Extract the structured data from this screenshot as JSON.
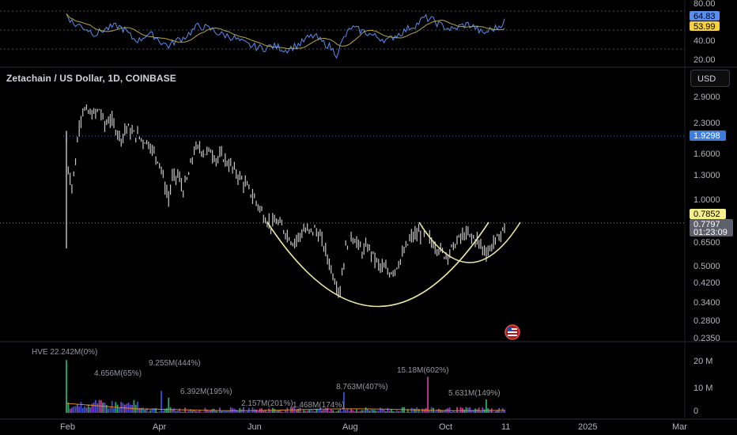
{
  "header": {
    "symbol_title": "Zetachain / US Dollar, 1D, COINBASE",
    "currency_button": "USD"
  },
  "colors": {
    "background": "#000000",
    "candle": "#c8c8c8",
    "rsi_line": "#5b8def",
    "rsi_ma": "#b5a642",
    "cup_curve": "#e8e6a4",
    "level_blue": "#3d7ddc",
    "level_yellow": "#f5f08b",
    "volume_palette": [
      "#3c4fd1",
      "#c43a9a",
      "#2aa86a",
      "#7a3fd0"
    ]
  },
  "rsi_pane": {
    "scale": [
      "80.00",
      "40.00",
      "20.00"
    ],
    "badge_values": [
      "64.83",
      "53.99"
    ]
  },
  "price_pane": {
    "scale": [
      "2.9000",
      "2.3000",
      "1.6000",
      "1.3000",
      "1.0000",
      "0.6500",
      "0.5000",
      "0.4200",
      "0.3400",
      "0.2800",
      "0.2350"
    ],
    "badges": {
      "blue_level": "1.9298",
      "yellow_level": "0.7852",
      "last_price": "0.7797",
      "countdown": "01:23:09"
    }
  },
  "volume_pane": {
    "legend": "HVE 22.242M(0%)",
    "scale": [
      "20 M",
      "10 M",
      "0"
    ],
    "annotations": [
      "4.656M(65%)",
      "9.255M(444%)",
      "6.392M(195%)",
      "2.157M(201%)",
      "1.468M(174%)",
      "8.763M(407%)",
      "15.18M(602%)",
      "5.631M(149%)"
    ]
  },
  "time_axis": [
    "Feb",
    "Apr",
    "Jun",
    "Aug",
    "Oct",
    "11",
    "2025",
    "Mar"
  ],
  "chart_data": {
    "type": "bar",
    "title": "Zetachain / US Dollar, 1D, COINBASE",
    "price_scale": "log",
    "price_range": [
      0.235,
      3.2
    ],
    "rsi_range": [
      10,
      90
    ],
    "volume_range": [
      0,
      24000000
    ],
    "levels": [
      1.9298,
      0.7852
    ],
    "last_price": 0.7797,
    "cup_bottom": 0.3,
    "rsi_last": 64.83,
    "rsi_ma_last": 53.99,
    "x_months": [
      "Feb",
      "Apr",
      "Jun",
      "Aug",
      "Oct",
      "11",
      "2025",
      "Mar"
    ],
    "price_keypoints": [
      [
        0,
        1.9
      ],
      [
        1,
        1.45
      ],
      [
        3,
        1.2
      ],
      [
        5,
        1.55
      ],
      [
        7,
        2.3
      ],
      [
        9,
        2.7
      ],
      [
        12,
        2.6
      ],
      [
        15,
        2.55
      ],
      [
        18,
        2.7
      ],
      [
        21,
        2.3
      ],
      [
        24,
        2.45
      ],
      [
        27,
        2.2
      ],
      [
        30,
        2.0
      ],
      [
        33,
        2.25
      ],
      [
        36,
        2.1
      ],
      [
        39,
        2.05
      ],
      [
        42,
        1.95
      ],
      [
        45,
        1.9
      ],
      [
        48,
        1.7
      ],
      [
        51,
        1.55
      ],
      [
        54,
        1.2
      ],
      [
        56,
        1.05
      ],
      [
        58,
        1.3
      ],
      [
        61,
        1.35
      ],
      [
        64,
        1.15
      ],
      [
        67,
        1.35
      ],
      [
        70,
        1.75
      ],
      [
        73,
        1.8
      ],
      [
        76,
        1.7
      ],
      [
        79,
        1.75
      ],
      [
        82,
        1.6
      ],
      [
        85,
        1.65
      ],
      [
        88,
        1.55
      ],
      [
        91,
        1.45
      ],
      [
        94,
        1.35
      ],
      [
        97,
        1.25
      ],
      [
        100,
        1.15
      ],
      [
        103,
        1.05
      ],
      [
        106,
        0.95
      ],
      [
        109,
        0.85
      ],
      [
        112,
        0.8
      ],
      [
        115,
        0.82
      ],
      [
        118,
        0.78
      ],
      [
        121,
        0.72
      ],
      [
        124,
        0.66
      ],
      [
        127,
        0.7
      ],
      [
        130,
        0.75
      ],
      [
        133,
        0.74
      ],
      [
        136,
        0.76
      ],
      [
        139,
        0.7
      ],
      [
        142,
        0.6
      ],
      [
        145,
        0.5
      ],
      [
        148,
        0.42
      ],
      [
        150,
        0.4
      ],
      [
        153,
        0.62
      ],
      [
        156,
        0.72
      ],
      [
        159,
        0.66
      ],
      [
        162,
        0.6
      ],
      [
        165,
        0.63
      ],
      [
        168,
        0.58
      ],
      [
        171,
        0.52
      ],
      [
        174,
        0.5
      ],
      [
        177,
        0.48
      ],
      [
        180,
        0.5
      ],
      [
        183,
        0.55
      ],
      [
        186,
        0.62
      ],
      [
        189,
        0.7
      ],
      [
        192,
        0.72
      ],
      [
        195,
        0.74
      ],
      [
        198,
        0.7
      ],
      [
        201,
        0.65
      ],
      [
        204,
        0.62
      ],
      [
        207,
        0.58
      ],
      [
        210,
        0.6
      ],
      [
        213,
        0.65
      ],
      [
        216,
        0.7
      ],
      [
        219,
        0.72
      ],
      [
        222,
        0.7
      ],
      [
        225,
        0.68
      ],
      [
        228,
        0.62
      ],
      [
        231,
        0.6
      ],
      [
        234,
        0.66
      ],
      [
        237,
        0.7
      ],
      [
        240,
        0.78
      ]
    ],
    "rsi_keypoints": [
      [
        0,
        75
      ],
      [
        4,
        62
      ],
      [
        8,
        60
      ],
      [
        12,
        55
      ],
      [
        16,
        50
      ],
      [
        20,
        55
      ],
      [
        24,
        58
      ],
      [
        28,
        60
      ],
      [
        32,
        55
      ],
      [
        36,
        45
      ],
      [
        40,
        42
      ],
      [
        44,
        50
      ],
      [
        48,
        48
      ],
      [
        52,
        40
      ],
      [
        56,
        35
      ],
      [
        60,
        42
      ],
      [
        64,
        45
      ],
      [
        68,
        52
      ],
      [
        72,
        60
      ],
      [
        76,
        58
      ],
      [
        80,
        55
      ],
      [
        84,
        50
      ],
      [
        88,
        48
      ],
      [
        92,
        45
      ],
      [
        96,
        40
      ],
      [
        100,
        36
      ],
      [
        104,
        34
      ],
      [
        108,
        32
      ],
      [
        112,
        35
      ],
      [
        116,
        34
      ],
      [
        120,
        30
      ],
      [
        124,
        34
      ],
      [
        128,
        38
      ],
      [
        132,
        45
      ],
      [
        136,
        48
      ],
      [
        140,
        40
      ],
      [
        144,
        35
      ],
      [
        148,
        25
      ],
      [
        152,
        45
      ],
      [
        156,
        58
      ],
      [
        160,
        55
      ],
      [
        164,
        52
      ],
      [
        168,
        48
      ],
      [
        172,
        45
      ],
      [
        176,
        42
      ],
      [
        180,
        48
      ],
      [
        184,
        52
      ],
      [
        188,
        58
      ],
      [
        192,
        62
      ],
      [
        196,
        70
      ],
      [
        200,
        68
      ],
      [
        204,
        62
      ],
      [
        208,
        58
      ],
      [
        212,
        55
      ],
      [
        216,
        60
      ],
      [
        220,
        62
      ],
      [
        224,
        58
      ],
      [
        228,
        50
      ],
      [
        232,
        55
      ],
      [
        236,
        58
      ],
      [
        240,
        66
      ]
    ],
    "volume_spikes": [
      [
        0,
        22.242
      ],
      [
        8,
        4.656
      ],
      [
        52,
        9.255
      ],
      [
        56,
        6.392
      ],
      [
        76,
        2.157
      ],
      [
        96,
        1.468
      ],
      [
        152,
        8.763
      ],
      [
        198,
        15.18
      ],
      [
        230,
        5.631
      ]
    ]
  }
}
